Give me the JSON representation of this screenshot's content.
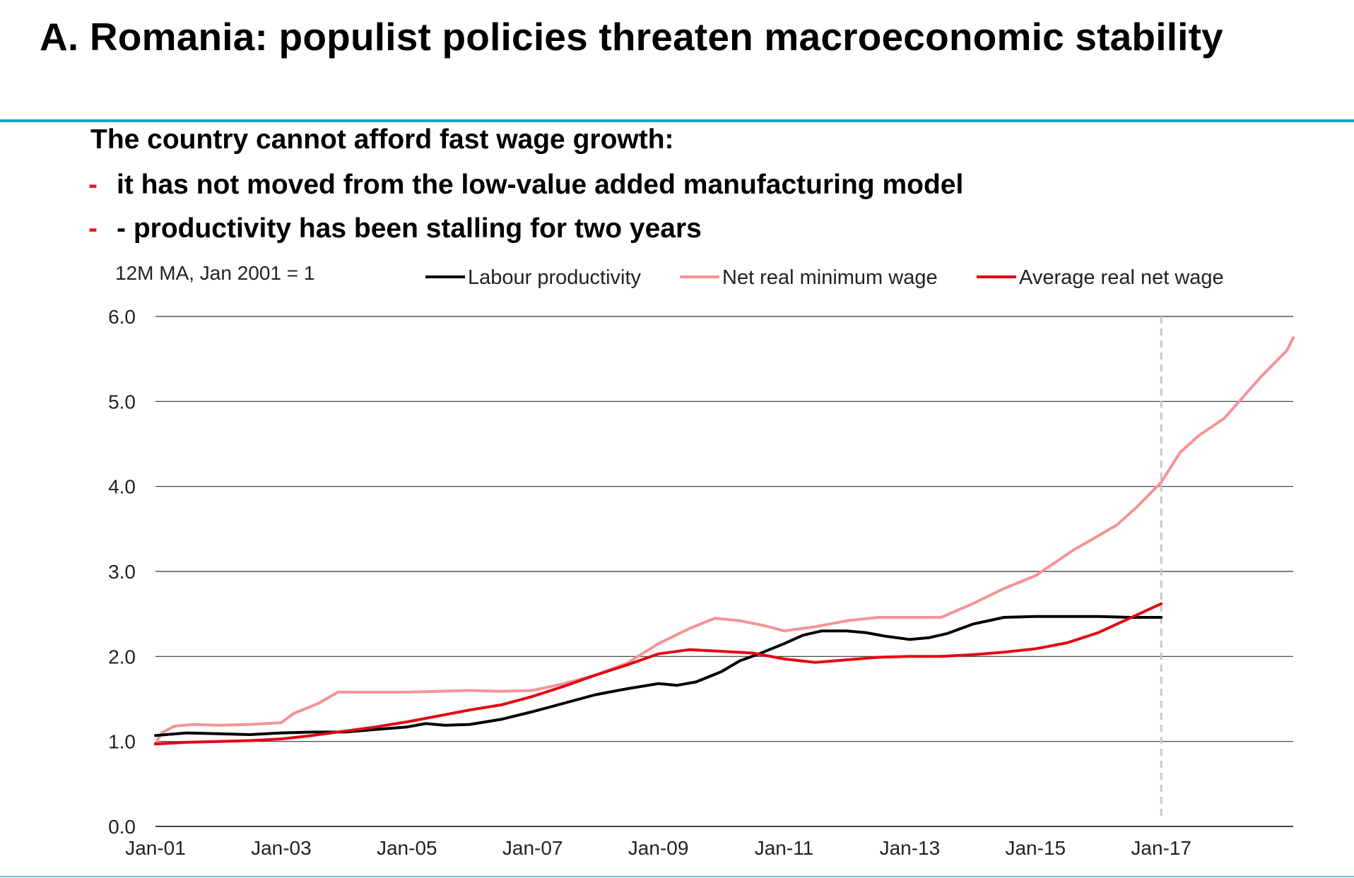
{
  "header": {
    "title": "A. Romania: populist policies threaten macroeconomic stability",
    "subtitle": "The country cannot afford fast wage growth:",
    "bullets": [
      {
        "dash": "-",
        "text": "it has not moved from the low-value added manufacturing model"
      },
      {
        "dash": "-",
        "text": "- productivity has been stalling for two years"
      }
    ]
  },
  "colors": {
    "accent_rule": "#1aa3c8",
    "bullet_dash": "#e0202a",
    "labour_productivity": "#000000",
    "net_real_minimum_wage": "#f49396",
    "average_real_net_wage": "#e30613",
    "divider": "#c8c8c8"
  },
  "chart_data": {
    "type": "line",
    "units_note": "12M MA, Jan 2001 = 1",
    "ylim": [
      0,
      6
    ],
    "y_ticks": [
      "0.0",
      "1.0",
      "2.0",
      "3.0",
      "4.0",
      "5.0",
      "6.0"
    ],
    "x_tick_labels": [
      "Jan-01",
      "Jan-03",
      "Jan-05",
      "Jan-07",
      "Jan-09",
      "Jan-11",
      "Jan-13",
      "Jan-15",
      "Jan-17"
    ],
    "x_ticks": [
      2001,
      2003,
      2005,
      2007,
      2009,
      2011,
      2013,
      2015,
      2017
    ],
    "xlim": [
      2001,
      2019.1
    ],
    "grid": true,
    "legend_position": "top",
    "vertical_marker_x": 2017,
    "series": [
      {
        "name": "Labour productivity",
        "color": "#000000",
        "points": [
          [
            2001.0,
            1.07
          ],
          [
            2001.5,
            1.1
          ],
          [
            2002.0,
            1.09
          ],
          [
            2002.5,
            1.08
          ],
          [
            2003.0,
            1.1
          ],
          [
            2003.5,
            1.11
          ],
          [
            2004.0,
            1.11
          ],
          [
            2004.5,
            1.14
          ],
          [
            2005.0,
            1.17
          ],
          [
            2005.3,
            1.21
          ],
          [
            2005.6,
            1.19
          ],
          [
            2006.0,
            1.2
          ],
          [
            2006.5,
            1.26
          ],
          [
            2007.0,
            1.35
          ],
          [
            2007.5,
            1.45
          ],
          [
            2008.0,
            1.55
          ],
          [
            2008.5,
            1.62
          ],
          [
            2009.0,
            1.68
          ],
          [
            2009.3,
            1.66
          ],
          [
            2009.6,
            1.7
          ],
          [
            2010.0,
            1.82
          ],
          [
            2010.3,
            1.95
          ],
          [
            2010.6,
            2.03
          ],
          [
            2011.0,
            2.15
          ],
          [
            2011.3,
            2.25
          ],
          [
            2011.6,
            2.3
          ],
          [
            2012.0,
            2.3
          ],
          [
            2012.3,
            2.28
          ],
          [
            2012.6,
            2.24
          ],
          [
            2013.0,
            2.2
          ],
          [
            2013.3,
            2.22
          ],
          [
            2013.6,
            2.27
          ],
          [
            2014.0,
            2.38
          ],
          [
            2014.5,
            2.46
          ],
          [
            2015.0,
            2.47
          ],
          [
            2015.5,
            2.47
          ],
          [
            2016.0,
            2.47
          ],
          [
            2016.5,
            2.46
          ],
          [
            2017.0,
            2.46
          ]
        ]
      },
      {
        "name": "Net real minimum wage",
        "color": "#f49396",
        "points": [
          [
            2001.0,
            0.98
          ],
          [
            2001.1,
            1.1
          ],
          [
            2001.3,
            1.18
          ],
          [
            2001.6,
            1.2
          ],
          [
            2002.0,
            1.19
          ],
          [
            2002.5,
            1.2
          ],
          [
            2003.0,
            1.22
          ],
          [
            2003.2,
            1.33
          ],
          [
            2003.6,
            1.45
          ],
          [
            2003.9,
            1.58
          ],
          [
            2004.5,
            1.58
          ],
          [
            2005.0,
            1.58
          ],
          [
            2005.5,
            1.59
          ],
          [
            2006.0,
            1.6
          ],
          [
            2006.5,
            1.59
          ],
          [
            2007.0,
            1.6
          ],
          [
            2007.5,
            1.68
          ],
          [
            2008.0,
            1.78
          ],
          [
            2008.5,
            1.92
          ],
          [
            2009.0,
            2.15
          ],
          [
            2009.5,
            2.33
          ],
          [
            2009.9,
            2.45
          ],
          [
            2010.3,
            2.42
          ],
          [
            2010.7,
            2.36
          ],
          [
            2011.0,
            2.3
          ],
          [
            2011.5,
            2.35
          ],
          [
            2012.0,
            2.42
          ],
          [
            2012.5,
            2.46
          ],
          [
            2013.0,
            2.46
          ],
          [
            2013.5,
            2.46
          ],
          [
            2014.0,
            2.62
          ],
          [
            2014.5,
            2.8
          ],
          [
            2015.0,
            2.95
          ],
          [
            2015.3,
            3.1
          ],
          [
            2015.6,
            3.25
          ],
          [
            2016.0,
            3.42
          ],
          [
            2016.3,
            3.55
          ],
          [
            2016.6,
            3.75
          ],
          [
            2017.0,
            4.05
          ],
          [
            2017.3,
            4.4
          ],
          [
            2017.6,
            4.6
          ],
          [
            2018.0,
            4.8
          ],
          [
            2018.3,
            5.05
          ],
          [
            2018.6,
            5.3
          ],
          [
            2019.0,
            5.6
          ],
          [
            2019.1,
            5.75
          ]
        ]
      },
      {
        "name": "Average real net wage",
        "color": "#e30613",
        "points": [
          [
            2001.0,
            0.97
          ],
          [
            2001.5,
            0.99
          ],
          [
            2002.0,
            1.0
          ],
          [
            2002.5,
            1.01
          ],
          [
            2003.0,
            1.03
          ],
          [
            2003.5,
            1.07
          ],
          [
            2004.0,
            1.12
          ],
          [
            2004.5,
            1.17
          ],
          [
            2005.0,
            1.23
          ],
          [
            2005.5,
            1.3
          ],
          [
            2006.0,
            1.37
          ],
          [
            2006.5,
            1.43
          ],
          [
            2007.0,
            1.53
          ],
          [
            2007.5,
            1.65
          ],
          [
            2008.0,
            1.78
          ],
          [
            2008.5,
            1.9
          ],
          [
            2009.0,
            2.03
          ],
          [
            2009.5,
            2.08
          ],
          [
            2010.0,
            2.06
          ],
          [
            2010.5,
            2.04
          ],
          [
            2011.0,
            1.97
          ],
          [
            2011.5,
            1.93
          ],
          [
            2012.0,
            1.96
          ],
          [
            2012.5,
            1.99
          ],
          [
            2013.0,
            2.0
          ],
          [
            2013.5,
            2.0
          ],
          [
            2014.0,
            2.02
          ],
          [
            2014.5,
            2.05
          ],
          [
            2015.0,
            2.09
          ],
          [
            2015.5,
            2.16
          ],
          [
            2016.0,
            2.28
          ],
          [
            2016.5,
            2.45
          ],
          [
            2017.0,
            2.62
          ]
        ]
      }
    ]
  }
}
